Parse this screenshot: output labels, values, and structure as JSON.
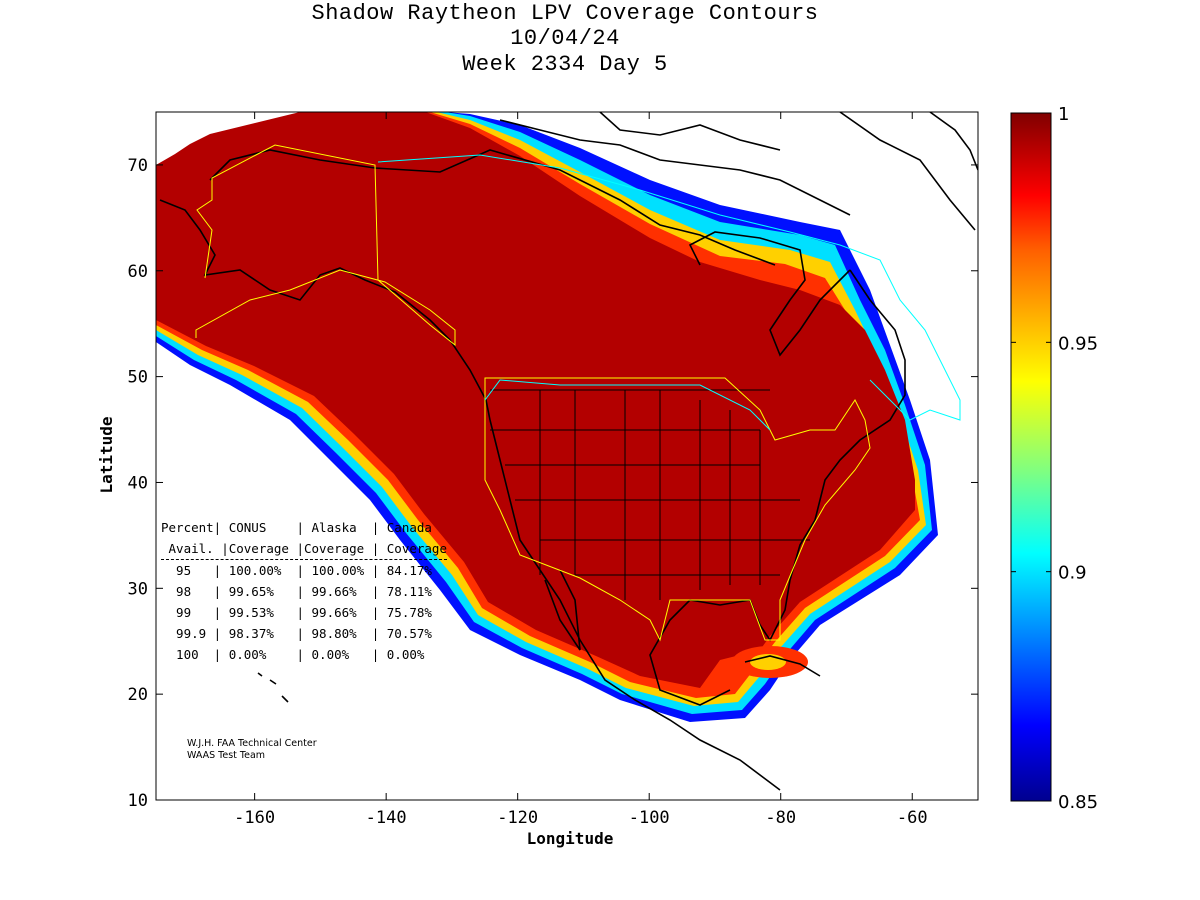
{
  "title": {
    "line1": "Shadow Raytheon LPV Coverage Contours",
    "line2": "10/04/24",
    "line3": "Week 2334 Day 5"
  },
  "axes": {
    "xlabel": "Longitude",
    "ylabel": "Latitude",
    "xlim": [
      -175,
      -50
    ],
    "ylim": [
      10,
      75
    ],
    "xticks": [
      -160,
      -140,
      -120,
      -100,
      -80,
      -60
    ],
    "yticks": [
      10,
      20,
      30,
      40,
      50,
      60,
      70
    ],
    "xtick_labels": [
      "-160",
      "-140",
      "-120",
      "-100",
      "-80",
      "-60"
    ],
    "ytick_labels": [
      "10",
      "20",
      "30",
      "40",
      "50",
      "60",
      "70"
    ]
  },
  "colorbar": {
    "range": [
      0.85,
      1
    ],
    "ticks": [
      0.85,
      0.9,
      0.95,
      1
    ],
    "tick_labels": [
      "0.85",
      "0.9",
      "0.95",
      "1"
    ],
    "colormap": "jet",
    "colors": [
      "#00008f",
      "#0000ff",
      "#0080ff",
      "#00ffff",
      "#80ff80",
      "#ffff00",
      "#ff8000",
      "#ff0000",
      "#800000"
    ]
  },
  "map": {
    "fill_color": "#b30000",
    "coverage_value_interior": 1
  },
  "coverage_table": {
    "header1": [
      "Percent",
      "CONUS",
      "Alaska",
      "Canada"
    ],
    "header2": [
      "Avail.",
      "Coverage",
      "Coverage",
      "Coverage"
    ],
    "rows": [
      [
        "95",
        "100.00%",
        "100.00%",
        "84.17%"
      ],
      [
        "98",
        "99.65%",
        "99.66%",
        "78.11%"
      ],
      [
        "99",
        "99.53%",
        "99.66%",
        "75.78%"
      ],
      [
        "99.9",
        "98.37%",
        "98.80%",
        "70.57%"
      ],
      [
        "100",
        "0.00%",
        "0.00%",
        "0.00%"
      ]
    ]
  },
  "credit": {
    "line1": "W.J.H. FAA Technical Center",
    "line2": "WAAS Test Team"
  }
}
